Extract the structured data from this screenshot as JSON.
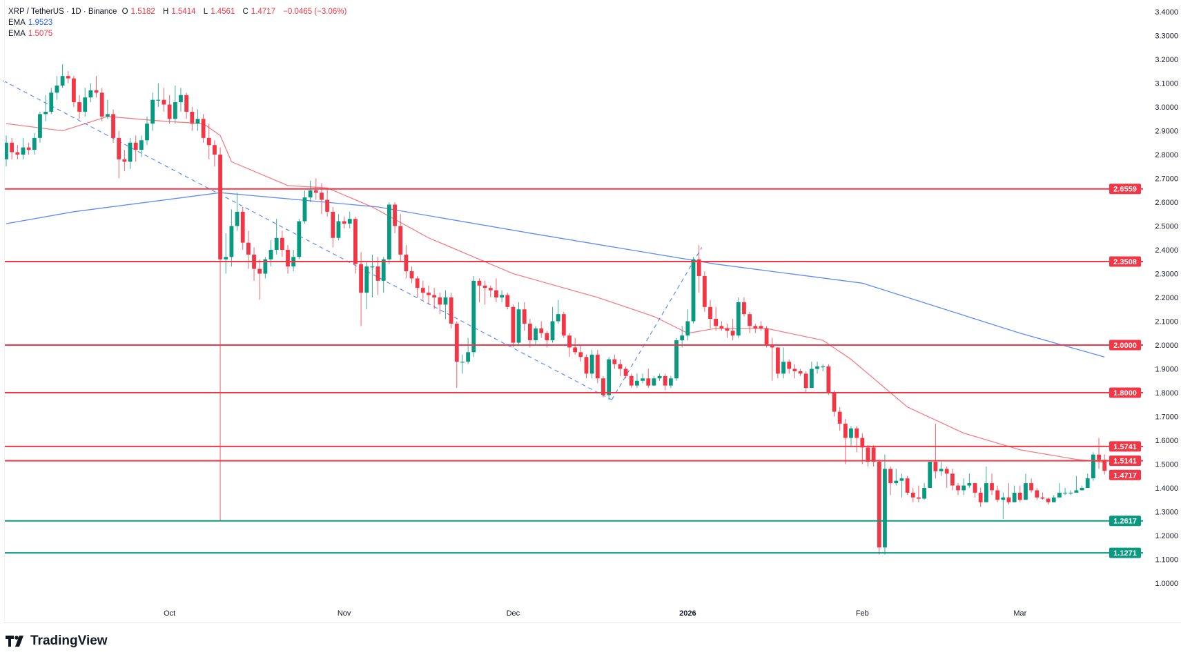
{
  "legend": {
    "symbol": "XRP / TetherUS · 1D · Binance",
    "open_label": "O",
    "open": "1.5182",
    "high_label": "H",
    "high": "1.5414",
    "low_label": "L",
    "low": "1.4561",
    "close_label": "C",
    "close": "1.4717",
    "change": "−0.0465 (−3.06%)",
    "ema1_label": "EMA",
    "ema1_value": "1.9523",
    "ema2_label": "EMA",
    "ema2_value": "1.5075"
  },
  "branding": {
    "logo_text": "TradingView"
  },
  "colors": {
    "up": "#089981",
    "down": "#f23645",
    "ema_long": "#2962ff",
    "ema_short": "#f23645",
    "trendline": "#5b8cff",
    "support": "#089981",
    "resistance": "#f23645"
  },
  "chart_data": {
    "type": "candlestick",
    "ylim": [
      0.92,
      3.445
    ],
    "y_ticks": [
      "1.0000",
      "1.1000",
      "1.2000",
      "1.3000",
      "1.4000",
      "1.5000",
      "1.6000",
      "1.7000",
      "1.8000",
      "1.9000",
      "2.0000",
      "2.1000",
      "2.2000",
      "2.3000",
      "2.4000",
      "2.5000",
      "2.6000",
      "2.7000",
      "2.8000",
      "2.9000",
      "3.0000",
      "3.1000",
      "3.2000",
      "3.3000",
      "3.4000"
    ],
    "x_labels": [
      {
        "label": "Oct",
        "index": 29
      },
      {
        "label": "Nov",
        "index": 60
      },
      {
        "label": "Dec",
        "index": 90
      },
      {
        "label": "2026",
        "index": 121,
        "bold": true
      },
      {
        "label": "Feb",
        "index": 152
      },
      {
        "label": "Mar",
        "index": 180
      }
    ],
    "candles_format": "[open, high, low, close]",
    "candles": [
      [
        2.78,
        2.88,
        2.75,
        2.85
      ],
      [
        2.85,
        2.87,
        2.78,
        2.81
      ],
      [
        2.81,
        2.84,
        2.78,
        2.8
      ],
      [
        2.8,
        2.87,
        2.78,
        2.83
      ],
      [
        2.83,
        2.85,
        2.8,
        2.82
      ],
      [
        2.82,
        2.89,
        2.8,
        2.87
      ],
      [
        2.87,
        2.98,
        2.85,
        2.97
      ],
      [
        2.97,
        3.05,
        2.94,
        2.98
      ],
      [
        2.98,
        3.08,
        2.97,
        3.06
      ],
      [
        3.06,
        3.13,
        3.03,
        3.09
      ],
      [
        3.09,
        3.18,
        3.08,
        3.13
      ],
      [
        3.13,
        3.15,
        3.1,
        3.12
      ],
      [
        3.12,
        3.13,
        3.0,
        3.02
      ],
      [
        3.02,
        3.05,
        2.95,
        2.98
      ],
      [
        2.98,
        3.08,
        2.96,
        3.04
      ],
      [
        3.04,
        3.1,
        3.02,
        3.07
      ],
      [
        3.07,
        3.13,
        3.04,
        3.06
      ],
      [
        3.06,
        3.08,
        2.94,
        2.96
      ],
      [
        2.96,
        3.03,
        2.95,
        2.97
      ],
      [
        2.97,
        2.99,
        2.85,
        2.87
      ],
      [
        2.87,
        2.9,
        2.7,
        2.78
      ],
      [
        2.78,
        2.82,
        2.73,
        2.77
      ],
      [
        2.77,
        2.87,
        2.74,
        2.85
      ],
      [
        2.85,
        2.88,
        2.77,
        2.82
      ],
      [
        2.82,
        2.88,
        2.79,
        2.86
      ],
      [
        2.86,
        2.96,
        2.84,
        2.93
      ],
      [
        2.93,
        3.06,
        2.9,
        3.03
      ],
      [
        3.03,
        3.1,
        3.0,
        3.03
      ],
      [
        3.03,
        3.08,
        2.98,
        3.01
      ],
      [
        3.01,
        3.05,
        2.93,
        2.95
      ],
      [
        2.95,
        3.09,
        2.93,
        3.02
      ],
      [
        3.02,
        3.08,
        2.98,
        3.05
      ],
      [
        3.05,
        3.06,
        2.95,
        2.98
      ],
      [
        2.98,
        3.0,
        2.9,
        2.93
      ],
      [
        2.93,
        2.99,
        2.9,
        2.95
      ],
      [
        2.95,
        2.97,
        2.85,
        2.87
      ],
      [
        2.87,
        2.93,
        2.78,
        2.84
      ],
      [
        2.84,
        2.86,
        2.75,
        2.8
      ],
      [
        2.8,
        2.83,
        1.26,
        2.36
      ],
      [
        2.36,
        2.47,
        2.3,
        2.37
      ],
      [
        2.37,
        2.57,
        2.33,
        2.5
      ],
      [
        2.5,
        2.64,
        2.48,
        2.56
      ],
      [
        2.56,
        2.58,
        2.4,
        2.43
      ],
      [
        2.43,
        2.48,
        2.32,
        2.38
      ],
      [
        2.38,
        2.41,
        2.27,
        2.32
      ],
      [
        2.32,
        2.36,
        2.19,
        2.3
      ],
      [
        2.3,
        2.37,
        2.28,
        2.36
      ],
      [
        2.36,
        2.44,
        2.33,
        2.4
      ],
      [
        2.4,
        2.53,
        2.38,
        2.45
      ],
      [
        2.45,
        2.48,
        2.37,
        2.4
      ],
      [
        2.4,
        2.42,
        2.3,
        2.33
      ],
      [
        2.33,
        2.4,
        2.31,
        2.37
      ],
      [
        2.37,
        2.53,
        2.36,
        2.52
      ],
      [
        2.52,
        2.65,
        2.51,
        2.62
      ],
      [
        2.62,
        2.69,
        2.6,
        2.65
      ],
      [
        2.65,
        2.7,
        2.61,
        2.64
      ],
      [
        2.64,
        2.68,
        2.55,
        2.61
      ],
      [
        2.61,
        2.66,
        2.54,
        2.56
      ],
      [
        2.56,
        2.58,
        2.41,
        2.45
      ],
      [
        2.45,
        2.55,
        2.44,
        2.52
      ],
      [
        2.52,
        2.54,
        2.49,
        2.51
      ],
      [
        2.51,
        2.56,
        2.49,
        2.53
      ],
      [
        2.53,
        2.54,
        2.3,
        2.34
      ],
      [
        2.34,
        2.39,
        2.08,
        2.22
      ],
      [
        2.22,
        2.35,
        2.15,
        2.33
      ],
      [
        2.33,
        2.38,
        2.2,
        2.33
      ],
      [
        2.33,
        2.37,
        2.21,
        2.27
      ],
      [
        2.27,
        2.37,
        2.22,
        2.36
      ],
      [
        2.36,
        2.6,
        2.34,
        2.59
      ],
      [
        2.59,
        2.6,
        2.47,
        2.5
      ],
      [
        2.5,
        2.55,
        2.35,
        2.38
      ],
      [
        2.38,
        2.42,
        2.28,
        2.31
      ],
      [
        2.31,
        2.33,
        2.26,
        2.28
      ],
      [
        2.28,
        2.29,
        2.2,
        2.24
      ],
      [
        2.24,
        2.27,
        2.19,
        2.22
      ],
      [
        2.22,
        2.25,
        2.17,
        2.21
      ],
      [
        2.21,
        2.24,
        2.15,
        2.2
      ],
      [
        2.2,
        2.22,
        2.13,
        2.17
      ],
      [
        2.17,
        2.23,
        2.11,
        2.2
      ],
      [
        2.2,
        2.22,
        2.07,
        2.09
      ],
      [
        2.09,
        2.1,
        1.82,
        1.93
      ],
      [
        1.93,
        1.96,
        1.88,
        1.93
      ],
      [
        1.93,
        2.03,
        1.92,
        1.97
      ],
      [
        1.97,
        2.29,
        1.95,
        2.27
      ],
      [
        2.27,
        2.28,
        2.18,
        2.25
      ],
      [
        2.25,
        2.27,
        2.17,
        2.24
      ],
      [
        2.24,
        2.25,
        2.2,
        2.23
      ],
      [
        2.23,
        2.28,
        2.18,
        2.2
      ],
      [
        2.2,
        2.23,
        2.18,
        2.21
      ],
      [
        2.21,
        2.22,
        2.15,
        2.16
      ],
      [
        2.16,
        2.17,
        1.99,
        2.01
      ],
      [
        2.01,
        2.18,
        2.0,
        2.15
      ],
      [
        2.15,
        2.18,
        2.06,
        2.09
      ],
      [
        2.09,
        2.11,
        1.99,
        2.02
      ],
      [
        2.02,
        2.08,
        2.0,
        2.07
      ],
      [
        2.07,
        2.1,
        2.03,
        2.05
      ],
      [
        2.05,
        2.06,
        1.99,
        2.02
      ],
      [
        2.02,
        2.16,
        2.01,
        2.1
      ],
      [
        2.1,
        2.19,
        2.09,
        2.13
      ],
      [
        2.13,
        2.14,
        2.03,
        2.04
      ],
      [
        2.04,
        2.05,
        1.95,
        1.99
      ],
      [
        1.99,
        2.03,
        1.96,
        1.97
      ],
      [
        1.97,
        2.0,
        1.93,
        1.95
      ],
      [
        1.95,
        1.96,
        1.86,
        1.88
      ],
      [
        1.88,
        1.98,
        1.86,
        1.96
      ],
      [
        1.96,
        1.98,
        1.84,
        1.86
      ],
      [
        1.86,
        1.87,
        1.78,
        1.79
      ],
      [
        1.79,
        1.95,
        1.77,
        1.94
      ],
      [
        1.94,
        1.96,
        1.9,
        1.92
      ],
      [
        1.92,
        1.94,
        1.87,
        1.9
      ],
      [
        1.9,
        1.91,
        1.86,
        1.87
      ],
      [
        1.87,
        1.88,
        1.82,
        1.83
      ],
      [
        1.83,
        1.88,
        1.82,
        1.85
      ],
      [
        1.85,
        1.88,
        1.84,
        1.86
      ],
      [
        1.86,
        1.9,
        1.82,
        1.83
      ],
      [
        1.83,
        1.87,
        1.83,
        1.86
      ],
      [
        1.86,
        1.88,
        1.85,
        1.87
      ],
      [
        1.87,
        1.88,
        1.81,
        1.83
      ],
      [
        1.83,
        1.87,
        1.82,
        1.86
      ],
      [
        1.86,
        2.03,
        1.85,
        2.02
      ],
      [
        2.02,
        2.08,
        1.99,
        2.04
      ],
      [
        2.04,
        2.15,
        2.02,
        2.1
      ],
      [
        2.1,
        2.37,
        2.09,
        2.36
      ],
      [
        2.36,
        2.42,
        2.22,
        2.29
      ],
      [
        2.29,
        2.31,
        2.14,
        2.16
      ],
      [
        2.16,
        2.19,
        2.07,
        2.11
      ],
      [
        2.11,
        2.16,
        2.06,
        2.08
      ],
      [
        2.08,
        2.1,
        2.06,
        2.07
      ],
      [
        2.07,
        2.09,
        2.03,
        2.06
      ],
      [
        2.06,
        2.11,
        2.02,
        2.04
      ],
      [
        2.04,
        2.2,
        2.03,
        2.18
      ],
      [
        2.18,
        2.2,
        2.12,
        2.13
      ],
      [
        2.13,
        2.14,
        2.05,
        2.08
      ],
      [
        2.08,
        2.09,
        2.05,
        2.07
      ],
      [
        2.08,
        2.1,
        2.06,
        2.07
      ],
      [
        2.07,
        2.08,
        1.99,
        2.0
      ],
      [
        2.0,
        2.03,
        1.85,
        1.99
      ],
      [
        1.99,
        1.99,
        1.86,
        1.88
      ],
      [
        1.88,
        1.99,
        1.86,
        1.93
      ],
      [
        1.93,
        1.94,
        1.88,
        1.9
      ],
      [
        1.9,
        1.92,
        1.86,
        1.89
      ],
      [
        1.89,
        1.9,
        1.87,
        1.88
      ],
      [
        1.88,
        1.89,
        1.8,
        1.82
      ],
      [
        1.82,
        1.93,
        1.82,
        1.9
      ],
      [
        1.9,
        1.93,
        1.88,
        1.91
      ],
      [
        1.91,
        1.92,
        1.89,
        1.91
      ],
      [
        1.91,
        1.92,
        1.79,
        1.8
      ],
      [
        1.8,
        1.81,
        1.7,
        1.72
      ],
      [
        1.72,
        1.74,
        1.64,
        1.67
      ],
      [
        1.67,
        1.69,
        1.5,
        1.61
      ],
      [
        1.61,
        1.66,
        1.57,
        1.65
      ],
      [
        1.65,
        1.66,
        1.55,
        1.61
      ],
      [
        1.61,
        1.63,
        1.5,
        1.57
      ],
      [
        1.57,
        1.58,
        1.49,
        1.51
      ],
      [
        1.57,
        1.58,
        1.49,
        1.51
      ],
      [
        1.51,
        1.52,
        1.12,
        1.15
      ],
      [
        1.15,
        1.54,
        1.12,
        1.48
      ],
      [
        1.48,
        1.49,
        1.37,
        1.42
      ],
      [
        1.42,
        1.48,
        1.41,
        1.43
      ],
      [
        1.43,
        1.46,
        1.36,
        1.44
      ],
      [
        1.44,
        1.45,
        1.37,
        1.38
      ],
      [
        1.38,
        1.4,
        1.34,
        1.36
      ],
      [
        1.36,
        1.41,
        1.34,
        1.355
      ],
      [
        1.355,
        1.42,
        1.35,
        1.4
      ],
      [
        1.4,
        1.51,
        1.4,
        1.51
      ],
      [
        1.51,
        1.67,
        1.44,
        1.47
      ],
      [
        1.47,
        1.51,
        1.45,
        1.48
      ],
      [
        1.48,
        1.49,
        1.4,
        1.46
      ],
      [
        1.46,
        1.48,
        1.39,
        1.41
      ],
      [
        1.41,
        1.42,
        1.37,
        1.39
      ],
      [
        1.39,
        1.44,
        1.37,
        1.41
      ],
      [
        1.41,
        1.46,
        1.4,
        1.42
      ],
      [
        1.42,
        1.42,
        1.36,
        1.38
      ],
      [
        1.38,
        1.4,
        1.32,
        1.34
      ],
      [
        1.34,
        1.49,
        1.34,
        1.42
      ],
      [
        1.42,
        1.46,
        1.37,
        1.39
      ],
      [
        1.39,
        1.41,
        1.34,
        1.35
      ],
      [
        1.35,
        1.38,
        1.27,
        1.36
      ],
      [
        1.36,
        1.42,
        1.33,
        1.34
      ],
      [
        1.34,
        1.41,
        1.34,
        1.38
      ],
      [
        1.38,
        1.41,
        1.34,
        1.35
      ],
      [
        1.35,
        1.46,
        1.35,
        1.42
      ],
      [
        1.42,
        1.44,
        1.38,
        1.39
      ],
      [
        1.39,
        1.4,
        1.35,
        1.36
      ],
      [
        1.36,
        1.38,
        1.35,
        1.355
      ],
      [
        1.355,
        1.36,
        1.33,
        1.34
      ],
      [
        1.34,
        1.37,
        1.34,
        1.36
      ],
      [
        1.36,
        1.42,
        1.36,
        1.38
      ],
      [
        1.38,
        1.4,
        1.37,
        1.38
      ],
      [
        1.38,
        1.39,
        1.37,
        1.38
      ],
      [
        1.38,
        1.45,
        1.38,
        1.39
      ],
      [
        1.39,
        1.41,
        1.39,
        1.4
      ],
      [
        1.4,
        1.46,
        1.4,
        1.44
      ],
      [
        1.44,
        1.55,
        1.43,
        1.54
      ],
      [
        1.54,
        1.61,
        1.48,
        1.5182
      ],
      [
        1.5182,
        1.5414,
        1.4561,
        1.4717
      ]
    ],
    "series": [
      {
        "name": "EMA",
        "value": 1.9523,
        "color": "#2962ff",
        "points": [
          [
            0,
            2.51
          ],
          [
            12,
            2.56
          ],
          [
            38,
            2.64
          ],
          [
            66,
            2.58
          ],
          [
            93,
            2.47
          ],
          [
            126,
            2.34
          ],
          [
            152,
            2.26
          ],
          [
            180,
            2.05
          ],
          [
            195,
            1.95
          ]
        ]
      },
      {
        "name": "EMA",
        "value": 1.5075,
        "color": "#f23645",
        "points": [
          [
            0,
            2.93
          ],
          [
            10,
            2.9
          ],
          [
            18,
            2.96
          ],
          [
            28,
            2.94
          ],
          [
            35,
            2.93
          ],
          [
            38,
            2.88
          ],
          [
            40,
            2.77
          ],
          [
            50,
            2.67
          ],
          [
            57,
            2.66
          ],
          [
            65,
            2.58
          ],
          [
            75,
            2.45
          ],
          [
            90,
            2.3
          ],
          [
            105,
            2.2
          ],
          [
            115,
            2.12
          ],
          [
            121,
            2.05
          ],
          [
            126,
            2.07
          ],
          [
            135,
            2.07
          ],
          [
            145,
            2.02
          ],
          [
            150,
            1.94
          ],
          [
            160,
            1.74
          ],
          [
            170,
            1.63
          ],
          [
            180,
            1.56
          ],
          [
            190,
            1.52
          ],
          [
            195,
            1.5075
          ]
        ]
      }
    ],
    "trendlines": [
      {
        "from": [
          -0.5,
          3.11
        ],
        "to": [
          107.5,
          1.77
        ]
      },
      {
        "from": [
          107.5,
          1.77
        ],
        "to": [
          123.5,
          2.41
        ]
      }
    ],
    "horizontal_levels": [
      {
        "value": 2.6559,
        "label": "2.6559",
        "kind": "resistance"
      },
      {
        "value": 2.3508,
        "label": "2.3508",
        "kind": "resistance"
      },
      {
        "value": 2.0,
        "label": "2.0000",
        "kind": "resistance"
      },
      {
        "value": 1.8,
        "label": "1.8000",
        "kind": "resistance"
      },
      {
        "value": 1.5741,
        "label": "1.5741",
        "kind": "resistance"
      },
      {
        "value": 1.5141,
        "label": "1.5141",
        "kind": "resistance"
      },
      {
        "value": 1.2617,
        "label": "1.2617",
        "kind": "support"
      },
      {
        "value": 1.1271,
        "label": "1.1271",
        "kind": "support"
      }
    ],
    "last_price": {
      "value": 1.4717,
      "label": "1.4717"
    }
  }
}
